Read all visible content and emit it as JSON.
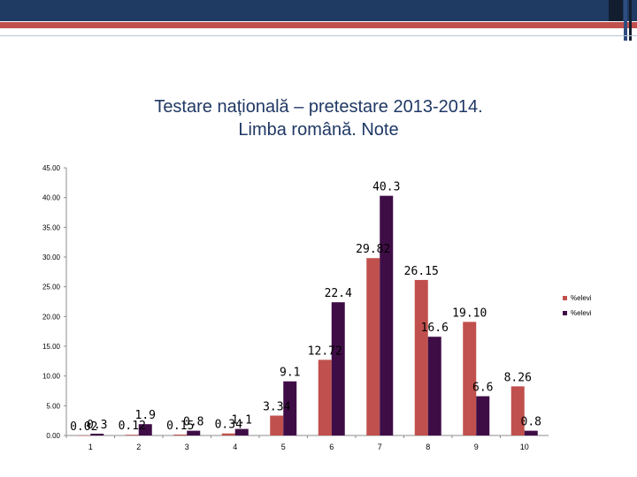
{
  "title": {
    "line1": "Testare națională – pretestare 2013-2014.",
    "line2": "Limba română. Note"
  },
  "colors": {
    "header_bar": "#1f3b64",
    "accent_stripe": "#c0504d",
    "series1": "#c0504d",
    "series2": "#3f0d46",
    "title_text": "#1f3864"
  },
  "chart_data": {
    "type": "bar",
    "title": "Testare națională – pretestare 2013-2014. Limba română. Note",
    "categories": [
      "1",
      "2",
      "3",
      "4",
      "5",
      "6",
      "7",
      "8",
      "9",
      "10"
    ],
    "series": [
      {
        "name": "%elevi",
        "values": [
          0.02,
          0.12,
          0.15,
          0.34,
          3.34,
          12.72,
          29.82,
          26.15,
          19.1,
          8.26
        ],
        "labels": [
          "0.02",
          "0.12",
          "0.15",
          "0.34",
          "3.34",
          "12.72",
          "29.82",
          "26.15",
          "19.10",
          "8.26"
        ]
      },
      {
        "name": "%elevi",
        "values": [
          0.3,
          1.9,
          0.8,
          1.1,
          9.1,
          22.4,
          40.3,
          16.6,
          6.6,
          0.8
        ],
        "labels": [
          "0.3",
          "1.9",
          "0.8",
          "1.1",
          "9.1",
          "22.4",
          "40.3",
          "16.6",
          "6.6",
          "0.8"
        ]
      }
    ],
    "yticks": [
      "0.00",
      "5.00",
      "10.00",
      "15.00",
      "20.00",
      "25.00",
      "30.00",
      "35.00",
      "40.00",
      "45.00"
    ],
    "ylim": [
      0,
      45
    ],
    "xlabel": "",
    "ylabel": "",
    "grid": false,
    "legend_position": "right"
  }
}
